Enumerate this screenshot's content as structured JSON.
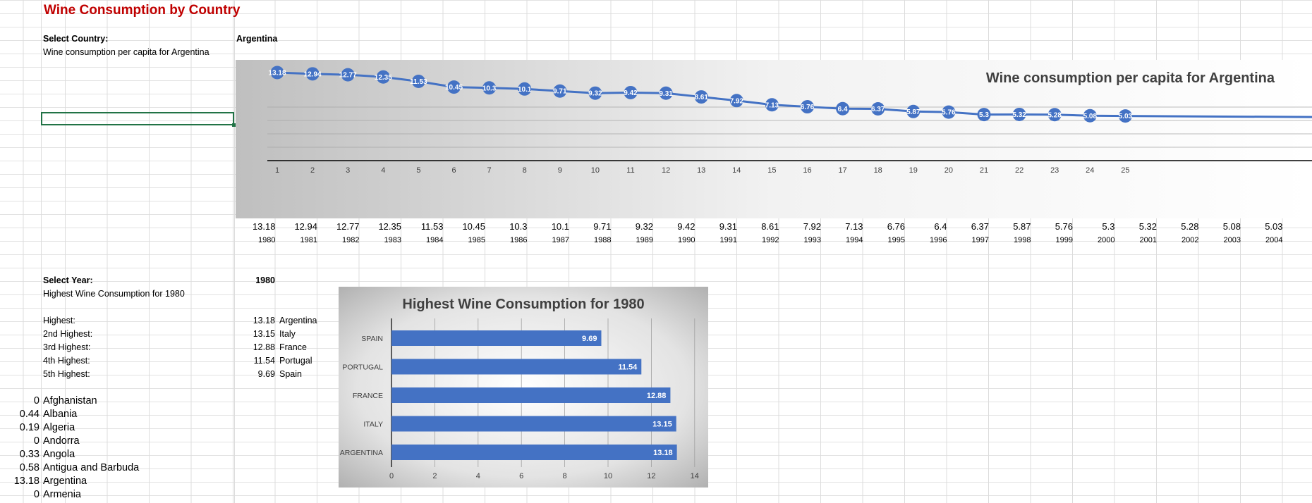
{
  "title": "Wine Consumption by Country",
  "select_country": {
    "label": "Select Country:",
    "value": "Argentina",
    "subtitle": "Wine consumption per capita for Argentina"
  },
  "line_chart": {
    "title": "Wine consumption per capita for Argentina",
    "colors": {
      "line": "#4472c4",
      "marker": "#4472c4"
    }
  },
  "years_row": {
    "values": [
      "13.18",
      "12.94",
      "12.77",
      "12.35",
      "11.53",
      "10.45",
      "10.3",
      "10.1",
      "9.71",
      "9.32",
      "9.42",
      "9.31",
      "8.61",
      "7.92",
      "7.13",
      "6.76",
      "6.4",
      "6.37",
      "5.87",
      "5.76",
      "5.3",
      "5.32",
      "5.28",
      "5.08",
      "5.03"
    ],
    "years": [
      "1980",
      "1981",
      "1982",
      "1983",
      "1984",
      "1985",
      "1986",
      "1987",
      "1988",
      "1989",
      "1990",
      "1991",
      "1992",
      "1993",
      "1994",
      "1995",
      "1996",
      "1997",
      "1998",
      "1999",
      "2000",
      "2001",
      "2002",
      "2003",
      "2004"
    ]
  },
  "select_year": {
    "label": "Select Year:",
    "value": "1980",
    "subtitle": "Highest Wine Consumption for 1980"
  },
  "ranking": [
    {
      "label": "Highest:",
      "value": "13.18",
      "country": "Argentina"
    },
    {
      "label": "2nd Highest:",
      "value": "13.15",
      "country": "Italy"
    },
    {
      "label": "3rd Highest:",
      "value": "12.88",
      "country": "France"
    },
    {
      "label": "4th Highest:",
      "value": "11.54",
      "country": "Portugal"
    },
    {
      "label": "5th Highest:",
      "value": "9.69",
      "country": "Spain"
    }
  ],
  "country_list": [
    {
      "value": "0",
      "name": "Afghanistan"
    },
    {
      "value": "0.44",
      "name": "Albania"
    },
    {
      "value": "0.19",
      "name": "Algeria"
    },
    {
      "value": "0",
      "name": "Andorra"
    },
    {
      "value": "0.33",
      "name": "Angola"
    },
    {
      "value": "0.58",
      "name": "Antigua and Barbuda"
    },
    {
      "value": "13.18",
      "name": "Argentina"
    },
    {
      "value": "0",
      "name": "Armenia"
    }
  ],
  "bar_chart": {
    "title": "Highest Wine Consumption for 1980",
    "colors": {
      "bar": "#4472c4"
    }
  },
  "chart_data": [
    {
      "type": "line",
      "title": "Wine consumption per capita for Argentina",
      "x": [
        1,
        2,
        3,
        4,
        5,
        6,
        7,
        8,
        9,
        10,
        11,
        12,
        13,
        14,
        15,
        16,
        17,
        18,
        19,
        20,
        21,
        22,
        23,
        24,
        25
      ],
      "series": [
        {
          "values": [
            13.18,
            12.94,
            12.77,
            12.35,
            11.53,
            10.45,
            10.3,
            10.1,
            9.71,
            9.32,
            9.42,
            9.31,
            8.61,
            7.92,
            7.13,
            6.76,
            6.4,
            6.37,
            5.87,
            5.76,
            5.3,
            5.32,
            5.28,
            5.08,
            5.03
          ]
        }
      ],
      "xlabel": "",
      "ylabel": "",
      "grid": true
    },
    {
      "type": "bar",
      "orientation": "horizontal",
      "title": "Highest Wine Consumption for 1980",
      "categories": [
        "SPAIN",
        "PORTUGAL",
        "FRANCE",
        "ITALY",
        "ARGENTINA"
      ],
      "values": [
        9.69,
        11.54,
        12.88,
        13.15,
        13.18
      ],
      "xlim": [
        0,
        14
      ],
      "xticks": [
        "0",
        "2",
        "4",
        "6",
        "8",
        "10",
        "12",
        "14"
      ],
      "xlabel": "",
      "ylabel": ""
    }
  ]
}
